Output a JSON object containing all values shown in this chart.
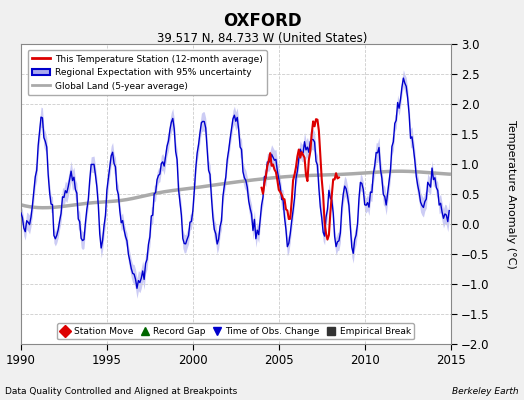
{
  "title": "OXFORD",
  "subtitle": "39.517 N, 84.733 W (United States)",
  "ylabel": "Temperature Anomaly (°C)",
  "xlabel_left": "Data Quality Controlled and Aligned at Breakpoints",
  "xlabel_right": "Berkeley Earth",
  "ylim": [
    -2.0,
    3.0
  ],
  "xlim": [
    1990,
    2015
  ],
  "yticks": [
    -2.0,
    -1.5,
    -1.0,
    -0.5,
    0.0,
    0.5,
    1.0,
    1.5,
    2.0,
    2.5,
    3.0
  ],
  "xticks": [
    1990,
    1995,
    2000,
    2005,
    2010,
    2015
  ],
  "fig_bg_color": "#f0f0f0",
  "plot_bg_color": "#ffffff",
  "blue_line_color": "#0000cc",
  "blue_fill_color": "#aaaaee",
  "red_line_color": "#dd0000",
  "gray_line_color": "#aaaaaa",
  "grid_color": "#cccccc",
  "legend_entries": [
    "This Temperature Station (12-month average)",
    "Regional Expectation with 95% uncertainty",
    "Global Land (5-year average)"
  ],
  "bottom_legend": [
    {
      "marker": "D",
      "color": "#dd0000",
      "label": "Station Move"
    },
    {
      "marker": "^",
      "color": "#006600",
      "label": "Record Gap"
    },
    {
      "marker": "v",
      "color": "#0000cc",
      "label": "Time of Obs. Change"
    },
    {
      "marker": "s",
      "color": "#333333",
      "label": "Empirical Break"
    }
  ]
}
